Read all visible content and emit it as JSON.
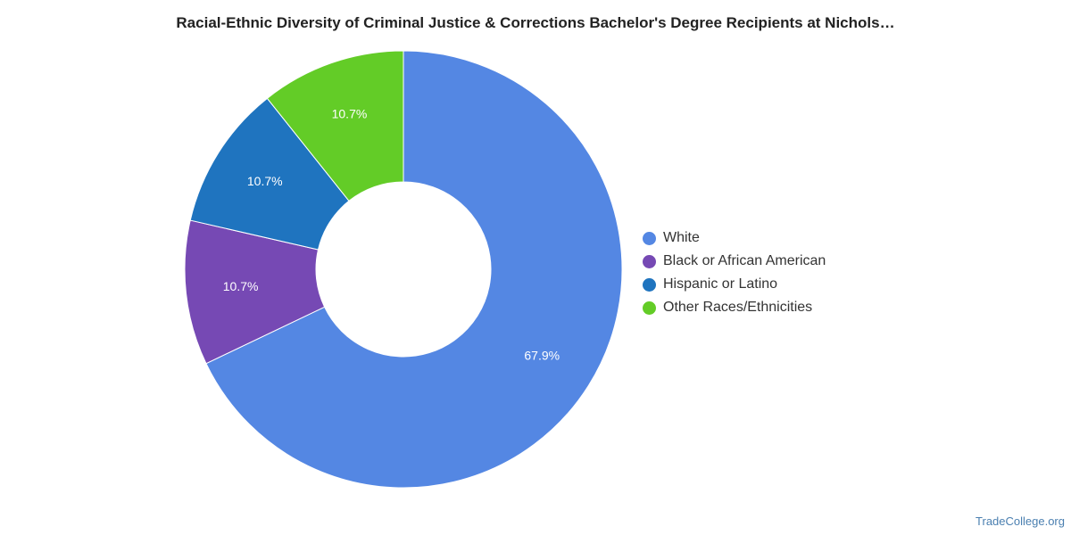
{
  "chart_data": {
    "type": "pie",
    "title": "Racial-Ethnic Diversity of Criminal Justice & Corrections Bachelor's Degree Recipients at Nichols…",
    "categories": [
      "White",
      "Black or African American",
      "Hispanic or Latino",
      "Other Races/Ethnicities"
    ],
    "values": [
      67.9,
      10.7,
      10.7,
      10.7
    ],
    "value_labels": [
      "67.9%",
      "10.7%",
      "10.7%",
      "10.7%"
    ],
    "colors": [
      "#5487e3",
      "#7649b4",
      "#1f74bf",
      "#63cc27"
    ],
    "donut": true,
    "legend_position": "right"
  },
  "watermark": "TradeCollege.org"
}
